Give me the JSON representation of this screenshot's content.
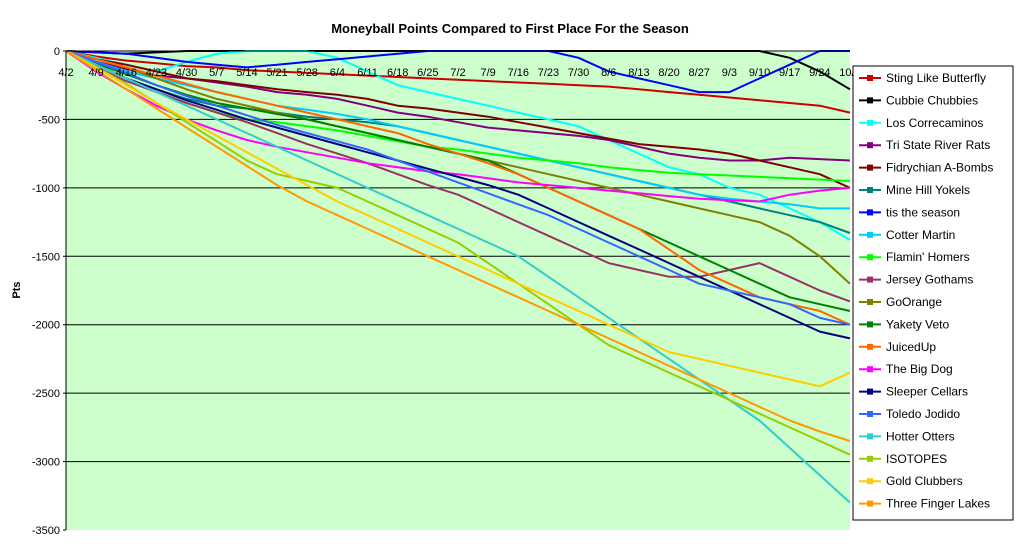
{
  "chart_data": {
    "type": "line",
    "title": "Moneyball Points Compared to First Place For the Season",
    "xlabel": "",
    "ylabel": "Pts",
    "ylim": [
      -3500,
      0
    ],
    "yticks": [
      0,
      -500,
      -1000,
      -1500,
      -2000,
      -2500,
      -3000,
      -3500
    ],
    "x_categories": [
      "4/2",
      "4/9",
      "4/16",
      "4/23",
      "4/30",
      "5/7",
      "5/14",
      "5/21",
      "5/28",
      "6/4",
      "6/11",
      "6/18",
      "6/25",
      "7/2",
      "7/9",
      "7/16",
      "7/23",
      "7/30",
      "8/6",
      "8/13",
      "8/20",
      "8/27",
      "9/3",
      "9/10",
      "9/17",
      "9/24",
      "10/1"
    ],
    "x_visible_tick_labels": [
      "4/2",
      "4/9",
      "4/16",
      "4/23",
      "4/30",
      "5/7",
      "5/14",
      "5/21",
      "5/28",
      "6/4",
      "6/11",
      "6/18",
      "6/25",
      "7/2",
      "7/9",
      "7/16",
      "7/23",
      "7/30",
      "8/6",
      "8/13",
      "8/20",
      "8/27",
      "9/3",
      "9/10",
      "9/17",
      "9/24",
      "10/1"
    ],
    "plot_background": "#ccffcc",
    "grid": true,
    "legend_position": "right",
    "series": [
      {
        "name": "Sting Like Butterfly",
        "color": "#cc0000",
        "values": [
          0,
          -40,
          -70,
          -90,
          -110,
          -120,
          -140,
          -150,
          -160,
          -170,
          -180,
          -190,
          -200,
          -210,
          -220,
          -230,
          -240,
          -250,
          -260,
          -280,
          -300,
          -320,
          -340,
          -360,
          -380,
          -400,
          -450
        ]
      },
      {
        "name": "Cubbie Chubbies",
        "color": "#000000",
        "values": [
          0,
          -10,
          -20,
          -10,
          0,
          0,
          0,
          0,
          0,
          0,
          0,
          0,
          0,
          0,
          0,
          0,
          0,
          0,
          0,
          0,
          0,
          0,
          0,
          0,
          -50,
          -150,
          -280
        ]
      },
      {
        "name": "Los Correcaminos",
        "color": "#00ffff",
        "values": [
          0,
          -50,
          -100,
          -150,
          -80,
          -20,
          0,
          0,
          0,
          -50,
          -150,
          -250,
          -300,
          -350,
          -400,
          -450,
          -500,
          -550,
          -650,
          -750,
          -850,
          -900,
          -1000,
          -1050,
          -1150,
          -1250,
          -1380
        ]
      },
      {
        "name": "Tri State River Rats",
        "color": "#800080",
        "values": [
          0,
          -80,
          -130,
          -180,
          -200,
          -230,
          -260,
          -300,
          -320,
          -350,
          -400,
          -450,
          -480,
          -520,
          -560,
          -580,
          -600,
          -620,
          -650,
          -700,
          -750,
          -780,
          -800,
          -800,
          -780,
          -790,
          -800
        ]
      },
      {
        "name": "Fidrychian A-Bombs",
        "color": "#800000",
        "values": [
          0,
          -60,
          -100,
          -150,
          -200,
          -220,
          -250,
          -280,
          -300,
          -320,
          -350,
          -400,
          -420,
          -450,
          -480,
          -520,
          -560,
          -600,
          -640,
          -680,
          -700,
          -720,
          -750,
          -800,
          -850,
          -900,
          -1000
        ]
      },
      {
        "name": "Mine Hill Yokels",
        "color": "#008080",
        "values": [
          0,
          -100,
          -200,
          -280,
          -350,
          -400,
          -420,
          -450,
          -480,
          -500,
          -520,
          -550,
          -600,
          -650,
          -700,
          -750,
          -800,
          -850,
          -900,
          -950,
          -1000,
          -1050,
          -1100,
          -1150,
          -1200,
          -1250,
          -1330
        ]
      },
      {
        "name": "tis the season",
        "color": "#0000ff",
        "values": [
          0,
          -10,
          -20,
          -50,
          -80,
          -100,
          -120,
          -100,
          -80,
          -60,
          -40,
          -20,
          0,
          0,
          0,
          0,
          0,
          -50,
          -150,
          -200,
          -250,
          -300,
          -300,
          -200,
          -100,
          0,
          0
        ]
      },
      {
        "name": "Cotter Martin",
        "color": "#00ccff",
        "values": [
          0,
          -80,
          -150,
          -200,
          -250,
          -300,
          -350,
          -400,
          -430,
          -460,
          -500,
          -550,
          -600,
          -650,
          -700,
          -750,
          -800,
          -850,
          -900,
          -950,
          -1000,
          -1050,
          -1080,
          -1100,
          -1120,
          -1150,
          -1150
        ]
      },
      {
        "name": "Flamin' Homers",
        "color": "#00ff00",
        "values": [
          0,
          -100,
          -200,
          -300,
          -380,
          -450,
          -500,
          -520,
          -550,
          -580,
          -620,
          -660,
          -700,
          -720,
          -750,
          -780,
          -800,
          -820,
          -850,
          -870,
          -890,
          -900,
          -910,
          -920,
          -930,
          -940,
          -950
        ]
      },
      {
        "name": "Jersey Gothams",
        "color": "#993366",
        "values": [
          0,
          -120,
          -220,
          -300,
          -380,
          -450,
          -520,
          -600,
          -680,
          -750,
          -820,
          -900,
          -980,
          -1050,
          -1150,
          -1250,
          -1350,
          -1450,
          -1550,
          -1600,
          -1650,
          -1650,
          -1600,
          -1550,
          -1650,
          -1750,
          -1830
        ]
      },
      {
        "name": "GoOrange",
        "color": "#808000",
        "values": [
          0,
          -60,
          -120,
          -200,
          -280,
          -350,
          -400,
          -450,
          -500,
          -550,
          -600,
          -650,
          -700,
          -750,
          -800,
          -850,
          -900,
          -950,
          -1000,
          -1050,
          -1100,
          -1150,
          -1200,
          -1250,
          -1350,
          -1500,
          -1700
        ]
      },
      {
        "name": "Yakety Veto",
        "color": "#008000",
        "values": [
          0,
          -90,
          -170,
          -250,
          -320,
          -380,
          -420,
          -460,
          -500,
          -550,
          -600,
          -650,
          -700,
          -750,
          -800,
          -900,
          -1000,
          -1100,
          -1200,
          -1300,
          -1400,
          -1500,
          -1600,
          -1700,
          -1800,
          -1850,
          -1900
        ]
      },
      {
        "name": "JuicedUp",
        "color": "#ff6600",
        "values": [
          0,
          -60,
          -120,
          -180,
          -240,
          -300,
          -350,
          -400,
          -450,
          -500,
          -550,
          -600,
          -680,
          -750,
          -820,
          -900,
          -1000,
          -1100,
          -1200,
          -1300,
          -1450,
          -1600,
          -1700,
          -1800,
          -1850,
          -1900,
          -2000
        ]
      },
      {
        "name": "The Big Dog",
        "color": "#ff00ff",
        "values": [
          0,
          -150,
          -280,
          -400,
          -500,
          -580,
          -650,
          -700,
          -740,
          -780,
          -820,
          -850,
          -880,
          -900,
          -930,
          -960,
          -980,
          -1000,
          -1020,
          -1040,
          -1060,
          -1080,
          -1090,
          -1100,
          -1050,
          -1020,
          -1000
        ]
      },
      {
        "name": "Sleeper Cellars",
        "color": "#000080",
        "values": [
          0,
          -100,
          -200,
          -280,
          -360,
          -430,
          -500,
          -560,
          -620,
          -680,
          -740,
          -800,
          -860,
          -920,
          -980,
          -1050,
          -1150,
          -1250,
          -1350,
          -1450,
          -1550,
          -1650,
          -1750,
          -1850,
          -1950,
          -2050,
          -2100
        ]
      },
      {
        "name": "Toledo Jodido",
        "color": "#3366ff",
        "values": [
          0,
          -80,
          -160,
          -250,
          -330,
          -400,
          -470,
          -540,
          -600,
          -660,
          -720,
          -800,
          -880,
          -960,
          -1040,
          -1120,
          -1200,
          -1300,
          -1400,
          -1500,
          -1600,
          -1700,
          -1750,
          -1800,
          -1850,
          -1950,
          -2000
        ]
      },
      {
        "name": "Hotter Otters",
        "color": "#33cccc",
        "values": [
          0,
          -100,
          -200,
          -300,
          -400,
          -500,
          -600,
          -700,
          -800,
          -900,
          -1000,
          -1100,
          -1200,
          -1300,
          -1400,
          -1500,
          -1650,
          -1800,
          -1950,
          -2100,
          -2250,
          -2400,
          -2550,
          -2700,
          -2900,
          -3100,
          -3300
        ]
      },
      {
        "name": "ISOTOPES",
        "color": "#99cc00",
        "values": [
          0,
          -120,
          -240,
          -380,
          -520,
          -660,
          -800,
          -900,
          -950,
          -1000,
          -1100,
          -1200,
          -1300,
          -1400,
          -1550,
          -1700,
          -1850,
          -2000,
          -2150,
          -2250,
          -2350,
          -2450,
          -2550,
          -2650,
          -2750,
          -2850,
          -2950
        ]
      },
      {
        "name": "Gold Clubbers",
        "color": "#ffcc00",
        "values": [
          0,
          -120,
          -250,
          -380,
          -500,
          -620,
          -740,
          -860,
          -980,
          -1100,
          -1200,
          -1300,
          -1400,
          -1500,
          -1600,
          -1700,
          -1800,
          -1900,
          -2000,
          -2100,
          -2200,
          -2250,
          -2300,
          -2350,
          -2400,
          -2450,
          -2350
        ]
      },
      {
        "name": "Three Finger Lakes",
        "color": "#ff9900",
        "values": [
          0,
          -140,
          -280,
          -420,
          -560,
          -700,
          -840,
          -980,
          -1100,
          -1200,
          -1300,
          -1400,
          -1500,
          -1600,
          -1700,
          -1800,
          -1900,
          -2000,
          -2100,
          -2200,
          -2300,
          -2400,
          -2500,
          -2600,
          -2700,
          -2780,
          -2850
        ]
      }
    ]
  }
}
